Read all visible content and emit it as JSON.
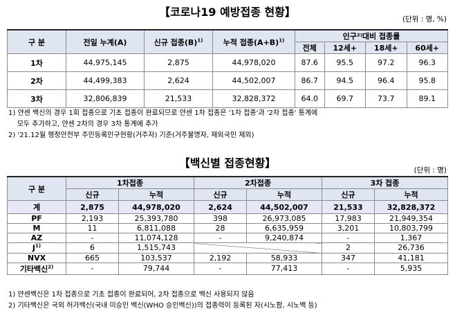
{
  "title1": "【코로나19 예방접종 현황】",
  "unit1": "(단위 : 명, %)",
  "table1": {
    "col_group": "구 분",
    "col_prev_total": "전일 누계(A)",
    "col_new": "신규 접종(B)",
    "col_new_sup": "1)",
    "col_cum": "누적 접종(A+B)",
    "col_cum_sup": "1)",
    "col_rate": "인구²⁾대비 접종률",
    "rate_sub": [
      "전체",
      "12세+",
      "18세+",
      "60세+"
    ],
    "rows": [
      {
        "label": "1차",
        "prev": "44,975,145",
        "new": "2,875",
        "cum": "44,978,020",
        "r": [
          "87.6",
          "95.5",
          "97.2",
          "96.3"
        ]
      },
      {
        "label": "2차",
        "prev": "44,499,383",
        "new": "2,624",
        "cum": "44,502,007",
        "r": [
          "86.7",
          "94.5",
          "96.4",
          "95.8"
        ]
      },
      {
        "label": "3차",
        "prev": "32,806,839",
        "new": "21,533",
        "cum": "32,828,372",
        "r": [
          "64.0",
          "69.7",
          "73.7",
          "89.1"
        ]
      }
    ]
  },
  "notes1": [
    "1) 얀센 백신의 경우 1회 접종으로 기초 접종이 완료되므로 얀센 1차 접종은 '1차 접종'과 '2차 접종' 통계에",
    "    모두 추가하고, 얀센 2차의 경우 3차 통계에 추가",
    "2) '21.12월 행정안전부 주민등록인구현황(거주자) 기준(거주불명자, 재외국민 제외)"
  ],
  "title2": "【백신별 접종현황】",
  "unit2": "(단위 : 명)",
  "table2": {
    "col_group": "구 분",
    "dose_headers": [
      "1차접종",
      "2차접종",
      "3차 접종"
    ],
    "sub_new": "신규",
    "sub_cum": "누적",
    "rows": [
      {
        "label": "계",
        "label_sup": "",
        "v": [
          "2,875",
          "44,978,020",
          "2,624",
          "44,502,007",
          "21,533",
          "32,828,372"
        ]
      },
      {
        "label": "PF",
        "label_sup": "",
        "v": [
          "2,193",
          "25,393,780",
          "398",
          "26,973,085",
          "17,983",
          "21,949,354"
        ]
      },
      {
        "label": "M",
        "label_sup": "",
        "v": [
          "11",
          "6,811,088",
          "28",
          "6,635,959",
          "3,201",
          "10,803,799"
        ]
      },
      {
        "label": "AZ",
        "label_sup": "",
        "v": [
          "-",
          "11,074,128",
          "-",
          "9,240,874",
          "-",
          "1,367"
        ]
      },
      {
        "label": "J",
        "label_sup": "1)",
        "v": [
          "6",
          "1,515,743",
          "",
          "",
          "2",
          "26,736"
        ]
      },
      {
        "label": "NVX",
        "label_sup": "",
        "v": [
          "665",
          "103,537",
          "2,192",
          "58,933",
          "347",
          "41,181"
        ]
      },
      {
        "label": "기타백신",
        "label_sup": "2)",
        "v": [
          "-",
          "79,744",
          "-",
          "77,413",
          "-",
          "5,935"
        ]
      }
    ]
  },
  "notes2": [
    "1) 얀센백신은 1차 접종으로 기초 접종이 완료되어, 2차 접종으로 백신 사용되지 않음",
    "2) 기타백신은 국외 허가백신(국내 미승인 백신(WHO 승인백신))의 접종력이 등록된 자(시노팜, 시노백 등)"
  ]
}
